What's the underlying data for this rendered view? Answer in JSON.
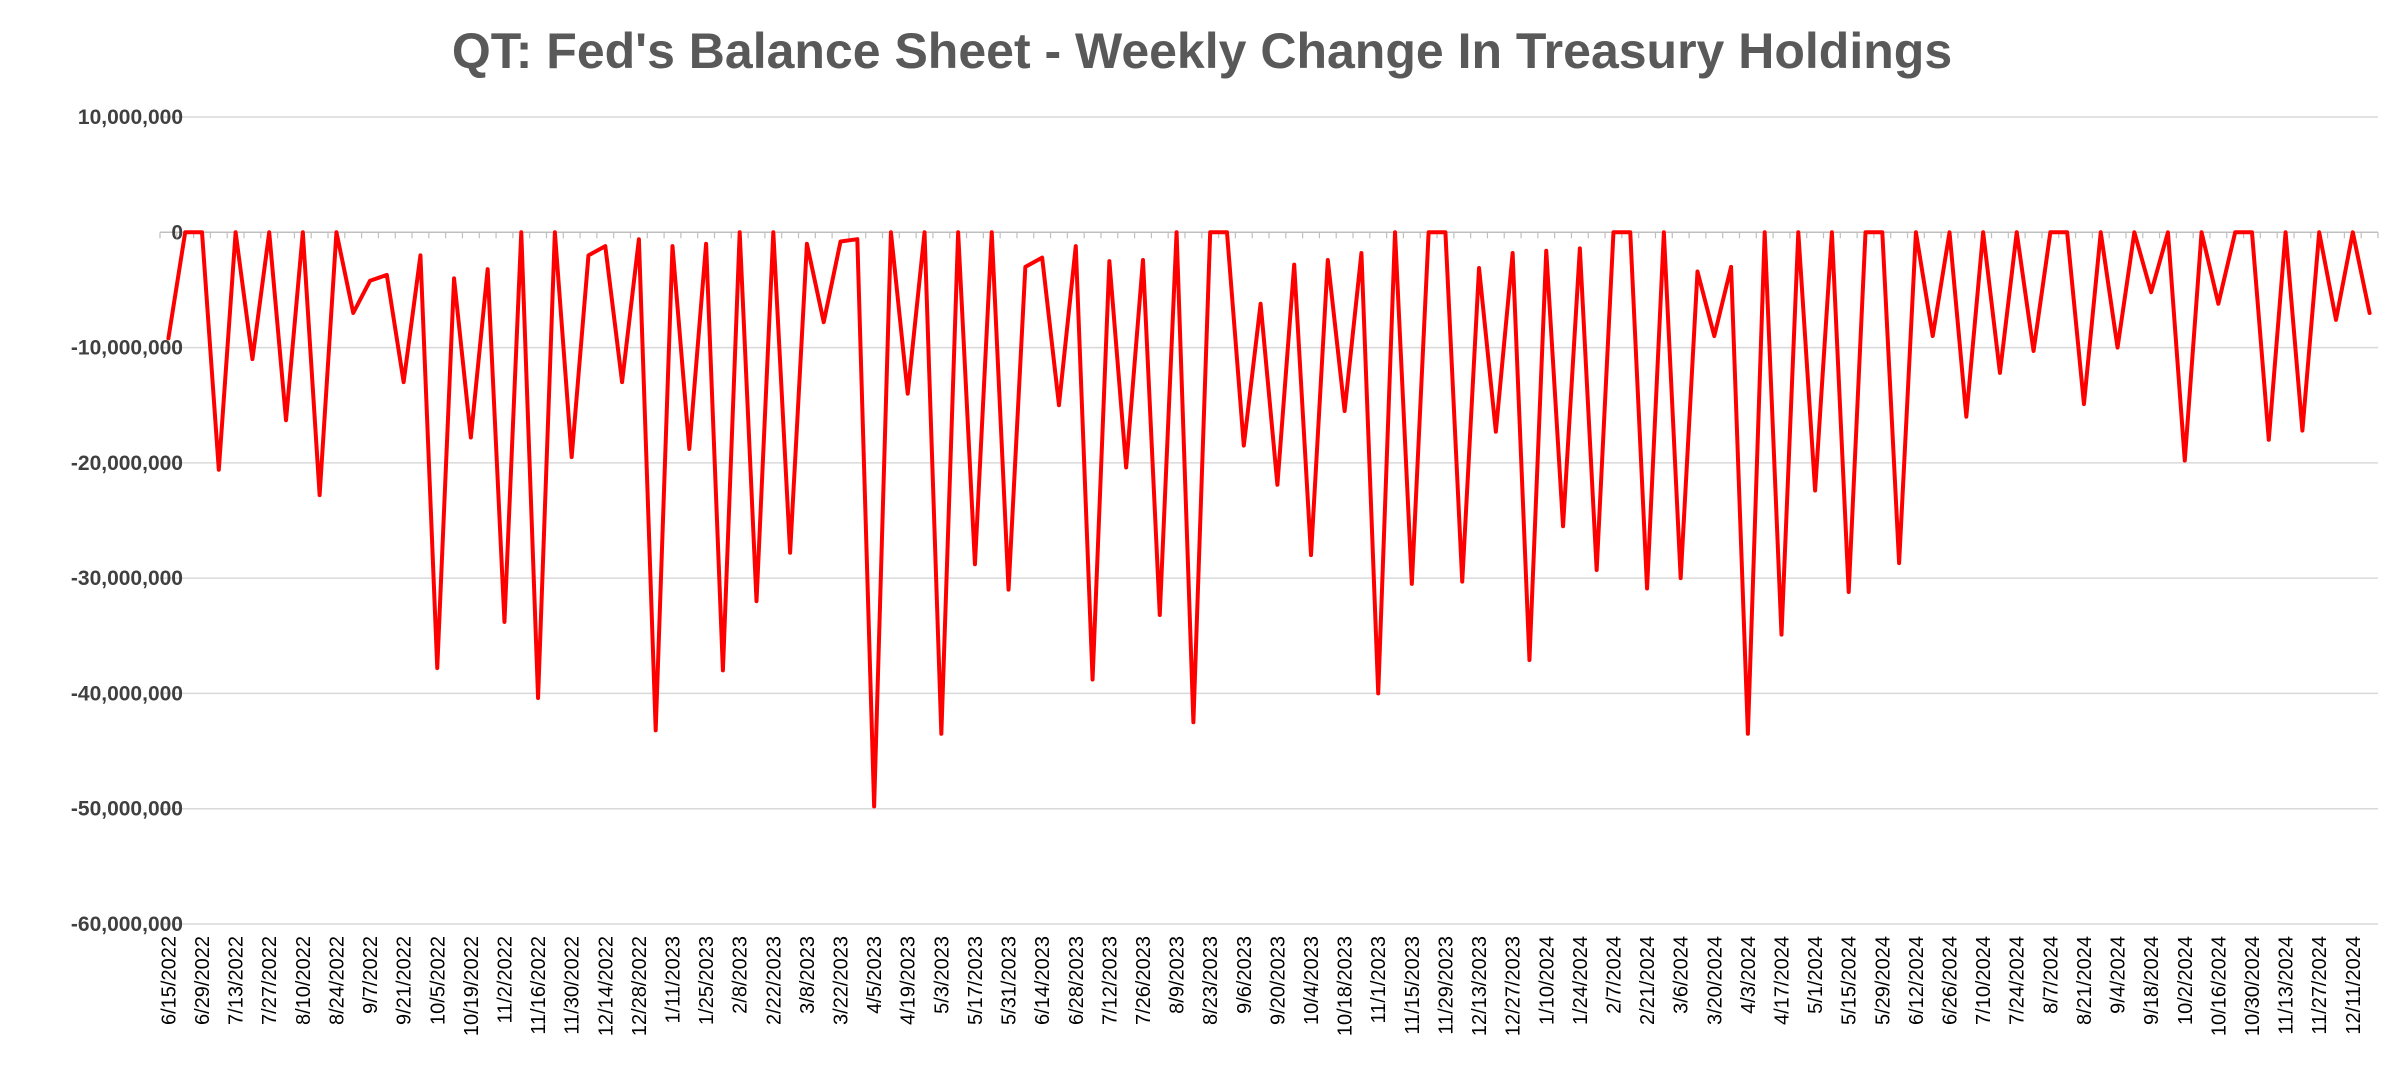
{
  "chart_data": {
    "type": "line",
    "title": "QT: Fed's Balance Sheet - Weekly Change In Treasury Holdings",
    "xlabel": "",
    "ylabel": "",
    "ylim": [
      -60000000,
      10000000
    ],
    "y_ticks": [
      10000000,
      0,
      -10000000,
      -20000000,
      -30000000,
      -40000000,
      -50000000,
      -60000000
    ],
    "y_tick_labels": [
      "10,000,000",
      "0",
      "-10,000,000",
      "-20,000,000",
      "-30,000,000",
      "-40,000,000",
      "-50,000,000",
      "-60,000,000"
    ],
    "x_tick_labels": [
      "6/15/2022",
      "6/29/2022",
      "7/13/2022",
      "7/27/2022",
      "8/10/2022",
      "8/24/2022",
      "9/7/2022",
      "9/21/2022",
      "10/5/2022",
      "10/19/2022",
      "11/2/2022",
      "11/16/2022",
      "11/30/2022",
      "12/14/2022",
      "12/28/2022",
      "1/11/2023",
      "1/25/2023",
      "2/8/2023",
      "2/22/2023",
      "3/8/2023",
      "3/22/2023",
      "4/5/2023",
      "4/19/2023",
      "5/3/2023",
      "5/17/2023",
      "5/31/2023",
      "6/14/2023",
      "6/28/2023",
      "7/12/2023",
      "7/26/2023",
      "8/9/2023",
      "8/23/2023",
      "9/6/2023",
      "9/20/2023",
      "10/4/2023",
      "10/18/2023",
      "11/1/2023",
      "11/15/2023",
      "11/29/2023",
      "12/13/2023",
      "12/27/2023",
      "1/10/2024",
      "1/24/2024",
      "2/7/2024",
      "2/21/2024",
      "3/6/2024",
      "3/20/2024",
      "4/3/2024",
      "4/17/2024",
      "5/1/2024",
      "5/15/2024",
      "5/29/2024",
      "6/12/2024",
      "6/26/2024",
      "7/10/2024",
      "7/24/2024",
      "8/7/2024",
      "8/21/2024",
      "9/4/2024",
      "9/18/2024",
      "10/2/2024",
      "10/16/2024",
      "10/30/2024",
      "11/13/2024",
      "11/27/2024",
      "12/11/2024"
    ],
    "grid": true,
    "legend": "none",
    "series": [
      {
        "color": "#ff0000",
        "values": [
          -9200000,
          0,
          0,
          -20600000,
          0,
          -11000000,
          0,
          -16300000,
          0,
          -22800000,
          0,
          -7000000,
          -4200000,
          -3700000,
          -13000000,
          -2000000,
          -37800000,
          -4000000,
          -17800000,
          -3200000,
          -33800000,
          0,
          -40400000,
          0,
          -19500000,
          -2000000,
          -1200000,
          -13000000,
          -600000,
          -43200000,
          -1200000,
          -18800000,
          -1000000,
          -38000000,
          0,
          -32000000,
          0,
          -27800000,
          -1000000,
          -7800000,
          -800000,
          -600000,
          -49800000,
          0,
          -14000000,
          0,
          -43500000,
          0,
          -28800000,
          0,
          -31000000,
          -3000000,
          -2200000,
          -15000000,
          -1200000,
          -38800000,
          -2500000,
          -20400000,
          -2400000,
          -33200000,
          0,
          -42500000,
          0,
          0,
          -18500000,
          -6200000,
          -21900000,
          -2800000,
          -28000000,
          -2400000,
          -15500000,
          -1800000,
          -40000000,
          0,
          -30500000,
          0,
          0,
          -30300000,
          -3100000,
          -17300000,
          -1800000,
          -37100000,
          -1600000,
          -25500000,
          -1400000,
          -29300000,
          0,
          0,
          -30900000,
          0,
          -30000000,
          -3400000,
          -9000000,
          -3000000,
          -43500000,
          0,
          -34900000,
          0,
          -22400000,
          0,
          -31200000,
          0,
          0,
          -28700000,
          0,
          -9000000,
          0,
          -16000000,
          0,
          -12200000,
          0,
          -10300000,
          0,
          0,
          -14900000,
          0,
          -10000000,
          0,
          -5200000,
          0,
          -19800000,
          0,
          -6200000,
          0,
          0,
          -18000000,
          0,
          -17200000,
          0,
          -7600000,
          0,
          -7000000
        ]
      }
    ]
  }
}
